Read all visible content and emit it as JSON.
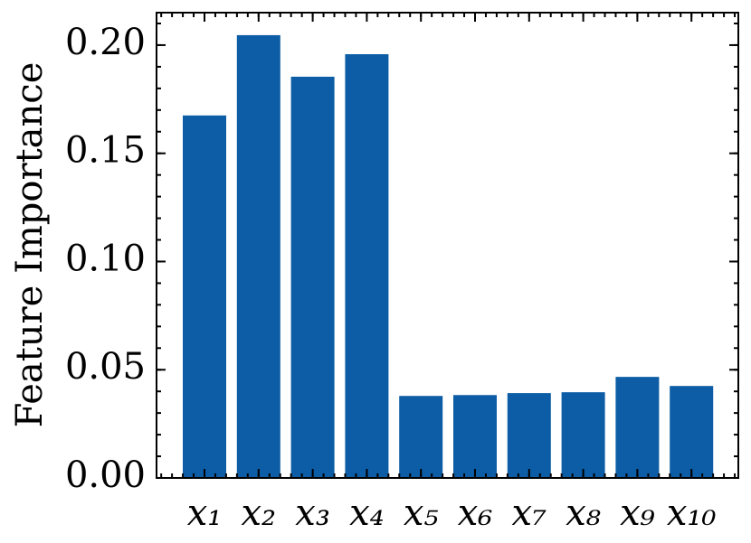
{
  "chart_data": {
    "type": "bar",
    "y_label": "Feature Importance",
    "categories": [
      "x₁",
      "x₂",
      "x₃",
      "x₄",
      "x₅",
      "x₆",
      "x₇",
      "x₈",
      "x₉",
      "x₁₀"
    ],
    "values": [
      0.1675,
      0.2046,
      0.1854,
      0.1958,
      0.0379,
      0.0383,
      0.0392,
      0.0396,
      0.0467,
      0.0425
    ],
    "color": "#0c5da5",
    "ylim": [
      0,
      0.215
    ],
    "yticks": [
      {
        "value": 0,
        "label": "0.00"
      },
      {
        "value": 0.05,
        "label": "0.05"
      },
      {
        "value": 0.1,
        "label": "0.10"
      },
      {
        "value": 0.15,
        "label": "0.15"
      },
      {
        "value": 0.2,
        "label": "0.20"
      }
    ],
    "minor_ticks": true,
    "mirror_ticks": true
  }
}
